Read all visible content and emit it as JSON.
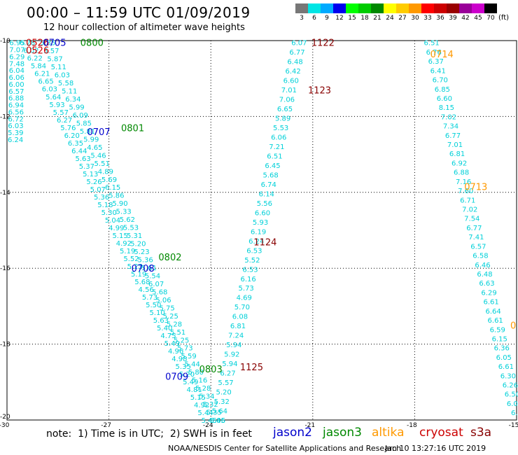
{
  "title": "00:00 – 11:59 UTC 01/09/2019",
  "subtitle": "12 hour collection of altimeter wave heights",
  "note": "note:  1) Time is in UTC;  2) SWH is in feet",
  "credit": "NOAA/NESDIS Center for Satellite Applications and Research",
  "timestamp": "Jan 10 13:27:16 UTC 2019",
  "unit_label": "(ft)",
  "legend": {
    "satellites": [
      {
        "name": "jason2",
        "color": "#0000cc"
      },
      {
        "name": "jason3",
        "color": "#008800"
      },
      {
        "name": "altika",
        "color": "#ff9900"
      },
      {
        "name": "cryosat",
        "color": "#cc0000"
      },
      {
        "name": "s3a",
        "color": "#880000"
      }
    ],
    "scale": [
      {
        "label": "3",
        "color": "#777777"
      },
      {
        "label": "6",
        "color": "#00e5e5"
      },
      {
        "label": "9",
        "color": "#00aaff"
      },
      {
        "label": "12",
        "color": "#0000ee"
      },
      {
        "label": "15",
        "color": "#00ff00"
      },
      {
        "label": "18",
        "color": "#00cc00"
      },
      {
        "label": "21",
        "color": "#008800"
      },
      {
        "label": "24",
        "color": "#ffff00"
      },
      {
        "label": "27",
        "color": "#ffcc00"
      },
      {
        "label": "30",
        "color": "#ff9900"
      },
      {
        "label": "33",
        "color": "#ff0000"
      },
      {
        "label": "36",
        "color": "#cc0000"
      },
      {
        "label": "39",
        "color": "#990000"
      },
      {
        "label": "42",
        "color": "#990099"
      },
      {
        "label": "45",
        "color": "#cc00cc"
      },
      {
        "label": "70",
        "color": "#000000"
      }
    ]
  },
  "chart_data": {
    "type": "scatter",
    "xlim": [
      -30,
      -15
    ],
    "ylim": [
      -20,
      -10
    ],
    "x_ticks": [
      -30,
      -27,
      -24,
      -21,
      -18,
      -15
    ],
    "y_ticks": [
      -10,
      -12,
      -14,
      -16,
      -18,
      -20
    ],
    "x_tick_labels": [
      "-30",
      "-27",
      "-24",
      "-21",
      "-18",
      "-15"
    ],
    "y_tick_labels": [
      "-10",
      "-12",
      "-14",
      "-16",
      "-18",
      "-20"
    ],
    "grid": true,
    "point_color": "#00d0d8",
    "tracks": [
      {
        "lon0": -29.7,
        "lat0": -10.05,
        "lon1": -29.75,
        "lat1": -12.6,
        "values": [
          "6.95",
          "7.07",
          "6.29",
          "7.48",
          "6.04",
          "6.06",
          "6.00",
          "6.57",
          "6.88",
          "6.94",
          "6.56",
          "6.72",
          "6.03",
          "5.39",
          "6.24"
        ]
      },
      {
        "lon0": -29.4,
        "lat0": -10.05,
        "lon1": -24.05,
        "lat1": -20.0,
        "values": [
          "6.28",
          "6.02",
          "6.22",
          "5.84",
          "6.21",
          "6.65",
          "6.03",
          "5.64",
          "5.93",
          "5.57",
          "6.27",
          "5.76",
          "6.20",
          "6.35",
          "6.44",
          "5.63",
          "5.37",
          "5.13",
          "5.26",
          "5.07",
          "5.36",
          "5.18",
          "5.30",
          "5.04",
          "4.99",
          "5.15",
          "4.92",
          "5.19",
          "5.52",
          "5.23",
          "5.19",
          "5.68",
          "4.56",
          "5.73",
          "5.50",
          "5.10",
          "5.63",
          "5.40",
          "4.75",
          "5.49",
          "4.96",
          "4.98",
          "5.35",
          "5.20",
          "5.49",
          "4.81",
          "5.15",
          "4.92",
          "5.44",
          "5.45"
        ]
      },
      {
        "lon0": -28.8,
        "lat0": -10.05,
        "lon1": -23.8,
        "lat1": -20.0,
        "values": [
          "5.35",
          "5.57",
          "5.87",
          "5.11",
          "6.03",
          "5.58",
          "5.11",
          "6.34",
          "5.99",
          "6.09",
          "5.85",
          "5.81",
          "5.99",
          "4.65",
          "5.46",
          "5.51",
          "4.89",
          "5.69",
          "6.15",
          "5.86",
          "5.90",
          "5.33",
          "5.62",
          "5.53",
          "5.31",
          "5.20",
          "5.23",
          "5.36",
          "5.61",
          "5.54",
          "6.07",
          "5.68",
          "5.06",
          "5.75",
          "5.25",
          "5.28",
          "5.51",
          "5.25",
          "5.73",
          "5.59",
          "5.44",
          "5.80",
          "5.16",
          "5.28",
          "5.34",
          "5.32",
          "5.35",
          "5.45"
        ]
      },
      {
        "lon0": -23.8,
        "lat0": -20.0,
        "lon1": -21.4,
        "lat1": -10.05,
        "values": [
          "5.86",
          "5.64",
          "5.32",
          "5.20",
          "5.57",
          "6.27",
          "5.94",
          "5.92",
          "5.94",
          "7.24",
          "6.81",
          "6.08",
          "5.70",
          "4.69",
          "5.73",
          "6.16",
          "6.53",
          "5.52",
          "6.53",
          "6.24",
          "6.19",
          "5.93",
          "6.60",
          "5.56",
          "6.14",
          "6.74",
          "5.68",
          "6.45",
          "6.51",
          "7.21",
          "6.06",
          "5.53",
          "5.89",
          "6.65",
          "7.06",
          "7.01",
          "6.60",
          "6.42",
          "6.48",
          "6.77",
          "6.07"
        ]
      },
      {
        "lon0": -17.5,
        "lat0": -10.05,
        "lon1": -15.0,
        "lat1": -19.8,
        "values": [
          "6.51",
          "6.76",
          "6.37",
          "6.41",
          "6.70",
          "6.85",
          "6.60",
          "8.15",
          "7.02",
          "7.34",
          "6.77",
          "7.01",
          "6.81",
          "6.92",
          "6.88",
          "7.16",
          "7.60",
          "6.71",
          "7.02",
          "7.54",
          "6.77",
          "7.41",
          "6.57",
          "6.58",
          "6.46",
          "6.48",
          "6.63",
          "6.29",
          "6.61",
          "6.64",
          "6.61",
          "6.59",
          "6.15",
          "6.36",
          "6.05",
          "6.61",
          "6.30",
          "6.26",
          "6.50",
          "6.00",
          "6.1"
        ]
      }
    ],
    "time_labels": [
      {
        "text": "0526",
        "lon": -29.1,
        "lat": -10.05,
        "sat": "cryosat"
      },
      {
        "text": "0526",
        "lon": -29.1,
        "lat": -10.25,
        "sat": "cryosat"
      },
      {
        "text": "0705",
        "lon": -28.6,
        "lat": -10.05,
        "sat": "jason2"
      },
      {
        "text": "0800",
        "lon": -27.5,
        "lat": -10.05,
        "sat": "jason3"
      },
      {
        "text": "0707",
        "lon": -27.3,
        "lat": -12.4,
        "sat": "jason2"
      },
      {
        "text": "0801",
        "lon": -26.3,
        "lat": -12.3,
        "sat": "jason3"
      },
      {
        "text": "0708",
        "lon": -26.0,
        "lat": -16.0,
        "sat": "jason2"
      },
      {
        "text": "0802",
        "lon": -25.2,
        "lat": -15.7,
        "sat": "jason3"
      },
      {
        "text": "0709",
        "lon": -25.0,
        "lat": -18.85,
        "sat": "jason2"
      },
      {
        "text": "0803",
        "lon": -24.0,
        "lat": -18.65,
        "sat": "jason3"
      },
      {
        "text": "1125",
        "lon": -22.8,
        "lat": -18.6,
        "sat": "s3a"
      },
      {
        "text": "1124",
        "lon": -22.4,
        "lat": -15.3,
        "sat": "s3a"
      },
      {
        "text": "1123",
        "lon": -20.8,
        "lat": -11.3,
        "sat": "s3a"
      },
      {
        "text": "1122",
        "lon": -20.7,
        "lat": -10.05,
        "sat": "s3a"
      },
      {
        "text": "0714",
        "lon": -17.2,
        "lat": -10.35,
        "sat": "altika"
      },
      {
        "text": "0713",
        "lon": -16.2,
        "lat": -13.85,
        "sat": "altika"
      },
      {
        "text": "0",
        "lon": -15.1,
        "lat": -17.5,
        "sat": "altika"
      }
    ]
  }
}
